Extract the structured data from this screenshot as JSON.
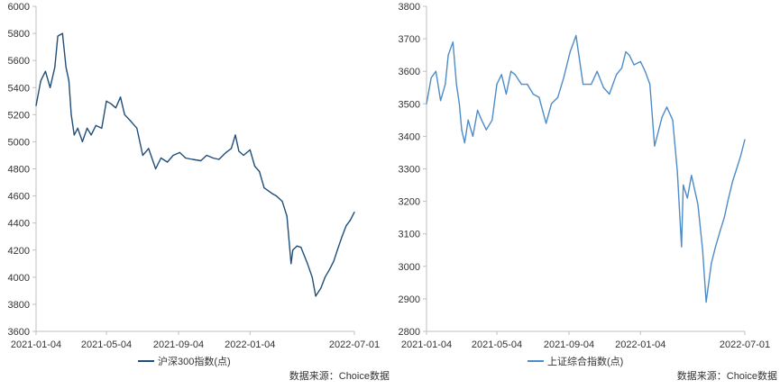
{
  "chart_data": [
    {
      "type": "line",
      "color": "#1F4E79",
      "ylim": [
        3600,
        6000
      ],
      "yticks": [
        "6000",
        "5800",
        "5600",
        "5400",
        "5200",
        "5000",
        "4800",
        "4600",
        "4400",
        "4200",
        "4000",
        "3800",
        "3600"
      ],
      "xticks": [
        "2021-01-04",
        "2021-05-04",
        "2021-09-04",
        "2022-01-04",
        "2022-07-01"
      ],
      "xlim": [
        "2021-01-04",
        "2022-07-01"
      ],
      "legend": "沪深300指数(点)",
      "source": "数据来源：Choice数据",
      "series": [
        {
          "name": "沪深300指数(点)",
          "x": [
            "2021-01-04",
            "2021-01-12",
            "2021-01-20",
            "2021-01-28",
            "2021-02-05",
            "2021-02-10",
            "2021-02-18",
            "2021-02-24",
            "2021-03-01",
            "2021-03-05",
            "2021-03-10",
            "2021-03-16",
            "2021-03-24",
            "2021-04-01",
            "2021-04-08",
            "2021-04-16",
            "2021-04-26",
            "2021-05-04",
            "2021-05-12",
            "2021-05-20",
            "2021-05-28",
            "2021-06-04",
            "2021-06-15",
            "2021-06-25",
            "2021-07-05",
            "2021-07-15",
            "2021-07-27",
            "2021-08-05",
            "2021-08-16",
            "2021-08-26",
            "2021-09-06",
            "2021-09-16",
            "2021-09-28",
            "2021-10-12",
            "2021-10-22",
            "2021-11-02",
            "2021-11-12",
            "2021-11-24",
            "2021-12-03",
            "2021-12-10",
            "2021-12-16",
            "2021-12-24",
            "2022-01-04",
            "2022-01-12",
            "2022-01-20",
            "2022-01-28",
            "2022-02-10",
            "2022-02-18",
            "2022-02-28",
            "2022-03-08",
            "2022-03-15",
            "2022-03-18",
            "2022-03-25",
            "2022-04-01",
            "2022-04-12",
            "2022-04-20",
            "2022-04-26",
            "2022-05-05",
            "2022-05-12",
            "2022-05-20",
            "2022-05-27",
            "2022-06-02",
            "2022-06-10",
            "2022-06-17",
            "2022-06-24",
            "2022-07-01"
          ],
          "values": [
            5267,
            5450,
            5520,
            5400,
            5550,
            5780,
            5800,
            5550,
            5450,
            5200,
            5050,
            5100,
            5000,
            5100,
            5050,
            5120,
            5100,
            5300,
            5280,
            5250,
            5330,
            5200,
            5150,
            5100,
            4900,
            4950,
            4800,
            4880,
            4850,
            4900,
            4920,
            4880,
            4870,
            4860,
            4900,
            4880,
            4870,
            4920,
            4950,
            5050,
            4930,
            4900,
            4940,
            4820,
            4780,
            4660,
            4620,
            4600,
            4560,
            4450,
            4100,
            4200,
            4230,
            4220,
            4100,
            4000,
            3860,
            3920,
            4000,
            4060,
            4120,
            4200,
            4300,
            4380,
            4420,
            4480
          ]
        }
      ]
    },
    {
      "type": "line",
      "color": "#4E8CC9",
      "ylim": [
        2800,
        3800
      ],
      "yticks": [
        "3800",
        "3700",
        "3600",
        "3500",
        "3400",
        "3300",
        "3200",
        "3100",
        "3000",
        "2900",
        "2800"
      ],
      "xticks": [
        "2021-01-04",
        "2021-05-04",
        "2021-09-04",
        "2022-01-04",
        "2022-07-01"
      ],
      "xlim": [
        "2021-01-04",
        "2022-07-01"
      ],
      "legend": "上证综合指数(点)",
      "source": "数据来源：Choice数据",
      "series": [
        {
          "name": "上证综合指数(点)",
          "x": [
            "2021-01-04",
            "2021-01-12",
            "2021-01-20",
            "2021-01-28",
            "2021-02-05",
            "2021-02-10",
            "2021-02-18",
            "2021-02-24",
            "2021-03-01",
            "2021-03-05",
            "2021-03-10",
            "2021-03-16",
            "2021-03-24",
            "2021-04-01",
            "2021-04-08",
            "2021-04-16",
            "2021-04-26",
            "2021-05-04",
            "2021-05-12",
            "2021-05-20",
            "2021-05-28",
            "2021-06-04",
            "2021-06-15",
            "2021-06-25",
            "2021-07-05",
            "2021-07-15",
            "2021-07-27",
            "2021-08-05",
            "2021-08-16",
            "2021-08-26",
            "2021-09-06",
            "2021-09-16",
            "2021-09-28",
            "2021-10-12",
            "2021-10-22",
            "2021-11-02",
            "2021-11-12",
            "2021-11-24",
            "2021-12-03",
            "2021-12-10",
            "2021-12-16",
            "2021-12-24",
            "2022-01-04",
            "2022-01-12",
            "2022-01-20",
            "2022-01-28",
            "2022-02-10",
            "2022-02-18",
            "2022-02-28",
            "2022-03-08",
            "2022-03-15",
            "2022-03-18",
            "2022-03-25",
            "2022-04-01",
            "2022-04-12",
            "2022-04-20",
            "2022-04-26",
            "2022-05-05",
            "2022-05-12",
            "2022-05-20",
            "2022-05-27",
            "2022-06-02",
            "2022-06-10",
            "2022-06-17",
            "2022-06-24",
            "2022-07-01"
          ],
          "values": [
            3500,
            3580,
            3600,
            3510,
            3560,
            3650,
            3690,
            3560,
            3500,
            3420,
            3380,
            3450,
            3400,
            3480,
            3450,
            3420,
            3450,
            3560,
            3590,
            3530,
            3600,
            3590,
            3560,
            3560,
            3530,
            3520,
            3440,
            3500,
            3520,
            3580,
            3660,
            3710,
            3560,
            3560,
            3600,
            3550,
            3530,
            3590,
            3610,
            3660,
            3650,
            3620,
            3630,
            3600,
            3560,
            3370,
            3460,
            3490,
            3450,
            3290,
            3060,
            3250,
            3210,
            3280,
            3190,
            3050,
            2890,
            3010,
            3060,
            3110,
            3150,
            3200,
            3260,
            3300,
            3340,
            3390
          ]
        }
      ]
    }
  ]
}
